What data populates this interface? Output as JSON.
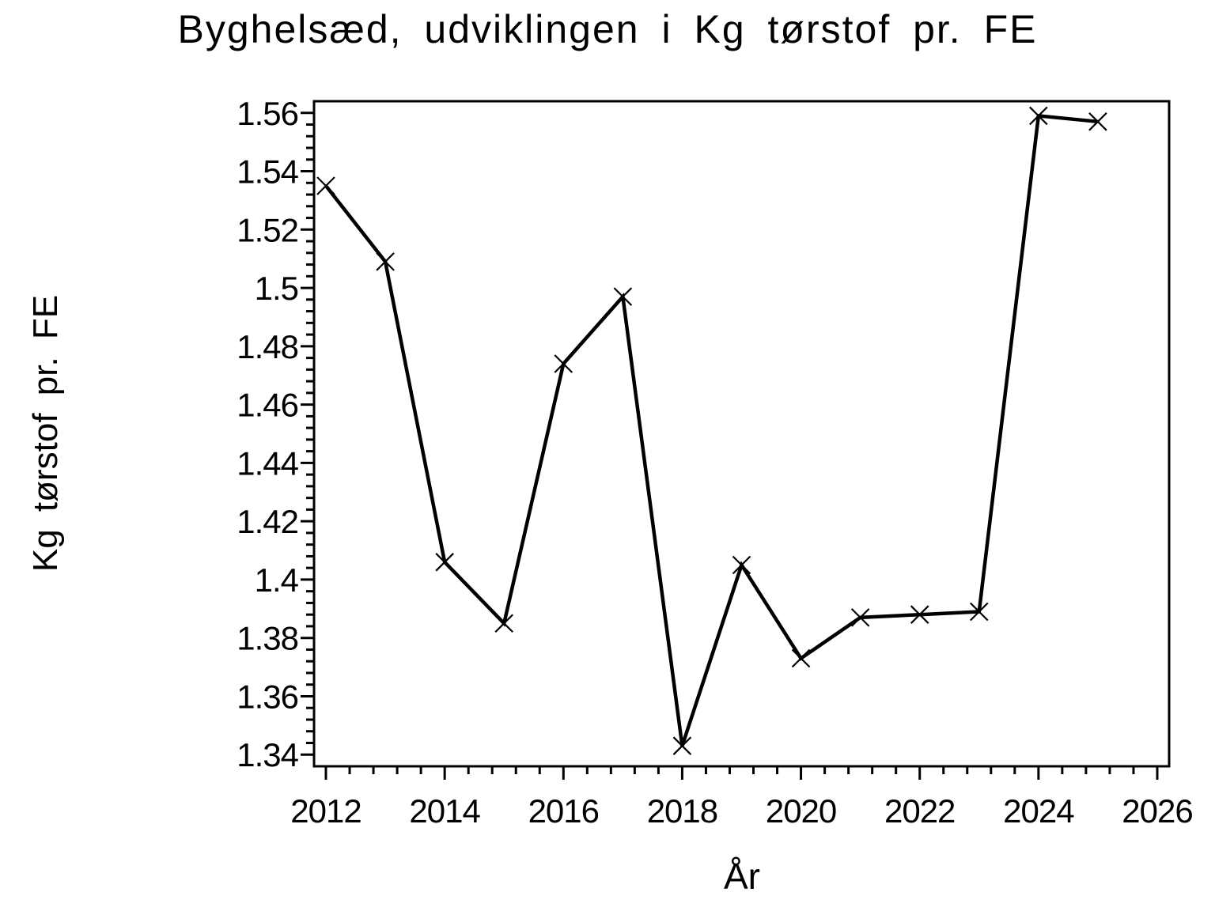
{
  "chart_data": {
    "type": "line",
    "title": "Byghelsæd, udviklingen i Kg tørstof pr. FE",
    "xlabel": "År",
    "ylabel": "Kg tørstof pr. FE",
    "x": [
      2012,
      2013,
      2014,
      2015,
      2016,
      2017,
      2018,
      2019,
      2020,
      2021,
      2022,
      2023,
      2024,
      2025
    ],
    "y": [
      1.535,
      1.509,
      1.406,
      1.385,
      1.474,
      1.497,
      1.343,
      1.405,
      1.373,
      1.387,
      1.388,
      1.389,
      1.559,
      1.557
    ],
    "marker": "x-cross",
    "line_color": "#000000",
    "background": "#ffffff",
    "grid": "off",
    "legend": "none",
    "xlim": [
      2011.8,
      2026.2
    ],
    "ylim": [
      1.336,
      1.564
    ],
    "x_ticks": {
      "values": [
        2012,
        2014,
        2016,
        2018,
        2020,
        2022,
        2024,
        2026
      ],
      "labels": [
        "2012",
        "2014",
        "2016",
        "2018",
        "2020",
        "2022",
        "2024",
        "2026"
      ]
    },
    "y_ticks": {
      "values": [
        1.34,
        1.36,
        1.38,
        1.4,
        1.42,
        1.44,
        1.46,
        1.48,
        1.5,
        1.52,
        1.54,
        1.56
      ],
      "labels": [
        "1.34",
        "1.36",
        "1.38",
        "1.4",
        "1.42",
        "1.44",
        "1.46",
        "1.48",
        "1.5",
        "1.52",
        "1.54",
        "1.56"
      ]
    },
    "x_minor_step": 0.4,
    "y_minor_step": 0.004
  }
}
